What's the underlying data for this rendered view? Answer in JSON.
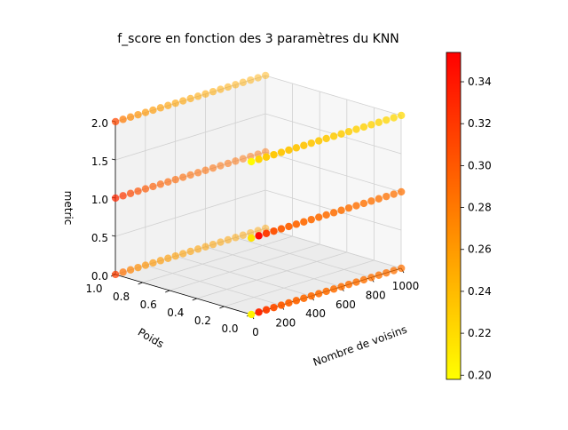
{
  "chart_data": {
    "type": "scatter3d",
    "title": "f_score en fonction des 3 paramètres du KNN",
    "xlabel": "Nombre de voisins",
    "ylabel": "Poids",
    "zlabel": "metric",
    "xlim": [
      0,
      1000
    ],
    "ylim": [
      0,
      1
    ],
    "zlim": [
      0,
      2
    ],
    "xticks": [
      "0",
      "200",
      "400",
      "600",
      "800",
      "1000"
    ],
    "yticks": [
      "0.0",
      "0.2",
      "0.4",
      "0.6",
      "0.8",
      "1.0"
    ],
    "zticks": [
      "0.0",
      "0.5",
      "1.0",
      "1.5",
      "2.0"
    ],
    "x_values": [
      1,
      51,
      101,
      151,
      201,
      251,
      301,
      351,
      401,
      451,
      501,
      551,
      601,
      651,
      701,
      751,
      801,
      851,
      901,
      951,
      1001
    ],
    "series": [
      {
        "weight": 0,
        "metric": 0,
        "f_score": [
          0.205,
          0.33,
          0.315,
          0.305,
          0.298,
          0.294,
          0.292,
          0.29,
          0.289,
          0.288,
          0.287,
          0.287,
          0.286,
          0.286,
          0.286,
          0.285,
          0.285,
          0.285,
          0.285,
          0.285,
          0.285
        ]
      },
      {
        "weight": 0,
        "metric": 1,
        "f_score": [
          0.215,
          0.35,
          0.318,
          0.305,
          0.298,
          0.294,
          0.292,
          0.29,
          0.289,
          0.288,
          0.287,
          0.287,
          0.286,
          0.286,
          0.286,
          0.285,
          0.285,
          0.285,
          0.285,
          0.285,
          0.285
        ]
      },
      {
        "weight": 0,
        "metric": 2,
        "f_score": [
          0.2,
          0.225,
          0.23,
          0.232,
          0.233,
          0.234,
          0.234,
          0.234,
          0.233,
          0.232,
          0.231,
          0.23,
          0.229,
          0.228,
          0.227,
          0.226,
          0.225,
          0.224,
          0.223,
          0.222,
          0.221
        ]
      },
      {
        "weight": 1,
        "metric": 0,
        "f_score": [
          0.315,
          0.285,
          0.275,
          0.268,
          0.265,
          0.262,
          0.26,
          0.259,
          0.258,
          0.257,
          0.257,
          0.256,
          0.256,
          0.255,
          0.255,
          0.255,
          0.254,
          0.254,
          0.254,
          0.254,
          0.254
        ]
      },
      {
        "weight": 1,
        "metric": 1,
        "f_score": [
          0.33,
          0.32,
          0.31,
          0.305,
          0.3,
          0.297,
          0.295,
          0.293,
          0.292,
          0.291,
          0.29,
          0.29,
          0.289,
          0.289,
          0.288,
          0.288,
          0.288,
          0.287,
          0.287,
          0.287,
          0.287
        ]
      },
      {
        "weight": 1,
        "metric": 2,
        "f_score": [
          0.31,
          0.28,
          0.27,
          0.265,
          0.262,
          0.26,
          0.258,
          0.256,
          0.255,
          0.254,
          0.253,
          0.252,
          0.252,
          0.251,
          0.251,
          0.25,
          0.25,
          0.249,
          0.249,
          0.249,
          0.248
        ]
      }
    ],
    "colorbar": {
      "label": "",
      "min": 0.198,
      "max": 0.354,
      "ticks": [
        "0.20",
        "0.22",
        "0.24",
        "0.26",
        "0.28",
        "0.30",
        "0.32",
        "0.34"
      ],
      "tick_values": [
        0.2,
        0.22,
        0.24,
        0.26,
        0.28,
        0.3,
        0.32,
        0.34
      ],
      "colormap": "autumn_r",
      "color_low": "#ffff00",
      "color_high": "#ff0000"
    },
    "grid": true,
    "pane_color": "#f2f2f2"
  }
}
